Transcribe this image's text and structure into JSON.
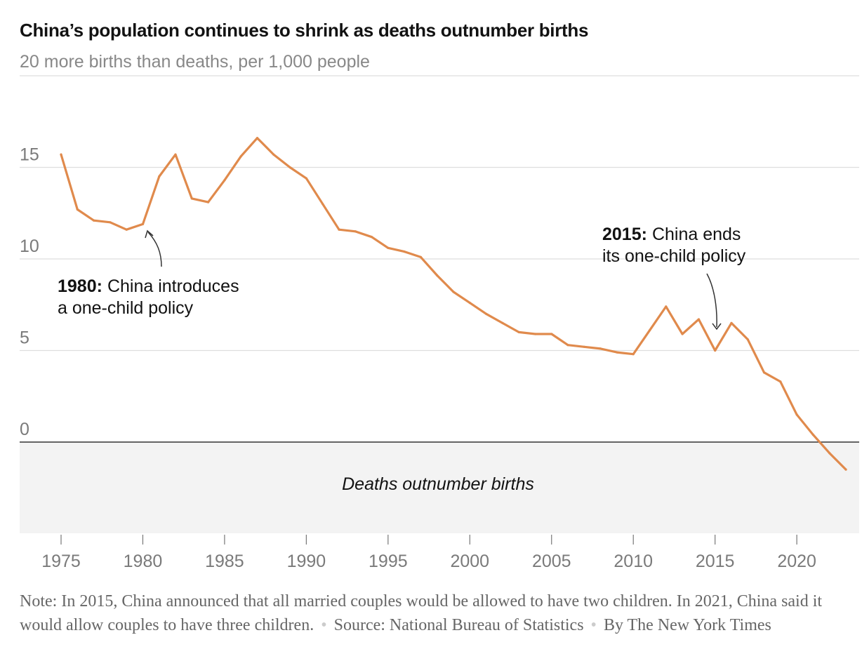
{
  "chart_data": {
    "type": "line",
    "title": "China’s population continues to shrink as deaths outnumber births",
    "subtitle": "20 more births than deaths, per 1,000 people",
    "xlim": [
      1975,
      2023
    ],
    "ylim": [
      -5,
      20
    ],
    "x_ticks": [
      "1975",
      "1980",
      "1985",
      "1990",
      "1995",
      "2000",
      "2005",
      "2010",
      "2015",
      "2020"
    ],
    "y_ticks": [
      "15",
      "10",
      "5",
      "0"
    ],
    "series": [
      {
        "color": "#e08a4c",
        "x": [
          1975,
          1976,
          1977,
          1978,
          1979,
          1980,
          1981,
          1982,
          1983,
          1984,
          1985,
          1986,
          1987,
          1988,
          1989,
          1990,
          1991,
          1992,
          1993,
          1994,
          1995,
          1996,
          1997,
          1998,
          1999,
          2000,
          2001,
          2002,
          2003,
          2004,
          2005,
          2006,
          2007,
          2008,
          2009,
          2010,
          2011,
          2012,
          2013,
          2014,
          2015,
          2016,
          2017,
          2018,
          2019,
          2020,
          2021,
          2022,
          2023
        ],
        "y": [
          15.7,
          12.7,
          12.1,
          12.0,
          11.6,
          11.9,
          14.5,
          15.7,
          13.3,
          13.1,
          14.3,
          15.6,
          16.6,
          15.7,
          15.0,
          14.4,
          13.0,
          11.6,
          11.5,
          11.2,
          10.6,
          10.4,
          10.1,
          9.1,
          8.2,
          7.6,
          7.0,
          6.5,
          6.0,
          5.9,
          5.9,
          5.3,
          5.2,
          5.1,
          4.9,
          4.8,
          6.1,
          7.4,
          5.9,
          6.7,
          5.0,
          6.5,
          5.6,
          3.8,
          3.3,
          1.5,
          0.4,
          -0.6,
          -1.5
        ]
      }
    ],
    "shaded_region_label": "Deaths outnumber births",
    "annotations": [
      {
        "year_label": "1980:",
        "line1": "China introduces",
        "line2": "a one-child policy"
      },
      {
        "year_label": "2015:",
        "line1": "China ends",
        "line2": "its one-child policy"
      }
    ],
    "grid": true
  },
  "footer": {
    "note": "Note: In 2015, China announced that all married couples would be allowed to have two children. In 2021, China said it would allow couples to have three children.",
    "source": "Source: National Bureau of Statistics",
    "credit": "By The New York Times"
  },
  "colors": {
    "line": "#e08a4c",
    "negative_band": "#f3f3f3",
    "grid": "#dddddd",
    "zero_line": "#333333"
  }
}
